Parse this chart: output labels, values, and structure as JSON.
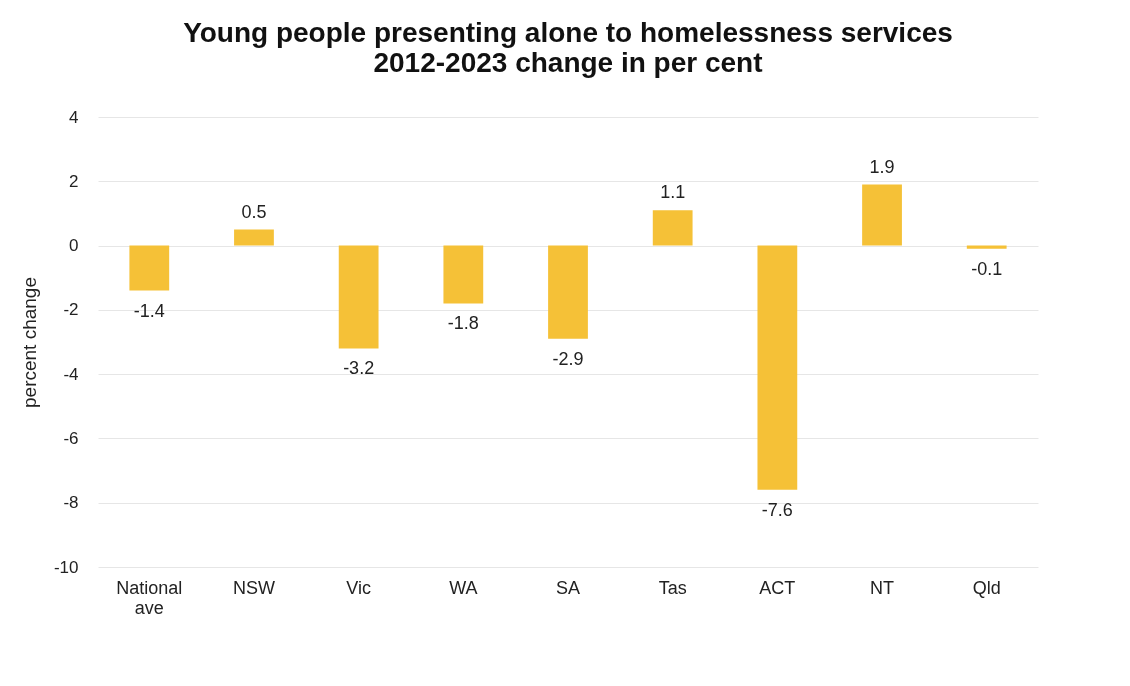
{
  "chart_data": {
    "type": "bar",
    "title": [
      "Young people presenting alone to homelessness services",
      "2012-2023 change in per cent"
    ],
    "ylabel": "percent change",
    "categories": [
      "National ave",
      "NSW",
      "Vic",
      "WA",
      "SA",
      "Tas",
      "ACT",
      "NT",
      "Qld"
    ],
    "values": [
      -1.4,
      0.5,
      -3.2,
      -1.8,
      -2.9,
      1.1,
      -7.6,
      1.9,
      -0.1
    ],
    "color": "#f5c137",
    "ylim": [
      -10,
      4
    ],
    "yticks": [
      -10,
      -8,
      -6,
      -4,
      -2,
      0,
      2,
      4
    ],
    "grid": "y",
    "data_labels": true
  }
}
